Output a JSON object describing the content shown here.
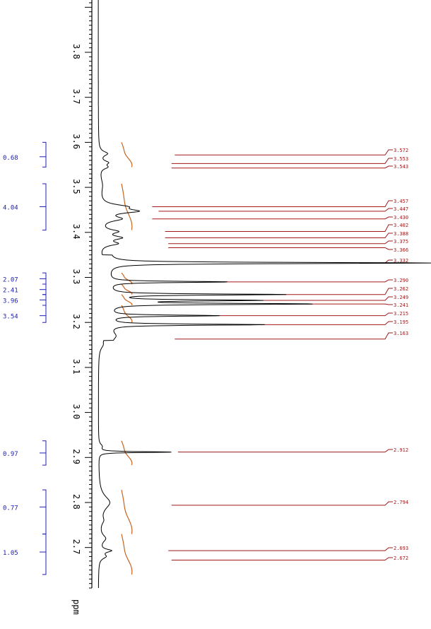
{
  "chart_data": {
    "type": "line",
    "title": "",
    "xlabel": "ppm",
    "xlim": [
      3.92,
      2.61
    ],
    "ticks": [
      "3.8",
      "3.7",
      "3.6",
      "3.5",
      "3.4",
      "3.3",
      "3.2",
      "3.1",
      "3.0",
      "2.9",
      "2.8",
      "2.7"
    ],
    "tick_values": [
      3.8,
      3.7,
      3.6,
      3.5,
      3.4,
      3.3,
      3.2,
      3.1,
      3.0,
      2.9,
      2.8,
      2.7
    ],
    "integrals": [
      {
        "label": "0.68",
        "from": 3.6,
        "to": 3.545,
        "mark": 3.568
      },
      {
        "label": "4.04",
        "from": 3.508,
        "to": 3.405,
        "mark": 3.457
      },
      {
        "label": "2.07",
        "from": 3.31,
        "to": 3.285,
        "mark": 3.297
      },
      {
        "label": "2.41",
        "from": 3.285,
        "to": 3.262,
        "mark": 3.273
      },
      {
        "label": "3.96",
        "from": 3.262,
        "to": 3.238,
        "mark": 3.25
      },
      {
        "label": "3.54",
        "from": 3.238,
        "to": 3.2,
        "mark": 3.215
      },
      {
        "label": "0.97",
        "from": 2.937,
        "to": 2.883,
        "mark": 2.91
      },
      {
        "label": "0.77",
        "from": 2.828,
        "to": 2.73,
        "mark": 2.79
      },
      {
        "label": "1.05",
        "from": 2.73,
        "to": 2.64,
        "mark": 2.69
      }
    ],
    "peaks": [
      {
        "label": "3.572",
        "ppm": 3.572,
        "height": 0.22
      },
      {
        "label": "3.553",
        "ppm": 3.553,
        "height": 0.21
      },
      {
        "label": "3.543",
        "ppm": 3.543,
        "height": 0.21
      },
      {
        "label": "3.457",
        "ppm": 3.457,
        "height": 0.15
      },
      {
        "label": "3.447",
        "ppm": 3.447,
        "height": 0.17
      },
      {
        "label": "3.430",
        "ppm": 3.43,
        "height": 0.15
      },
      {
        "label": "3.402",
        "ppm": 3.402,
        "height": 0.19
      },
      {
        "label": "3.388",
        "ppm": 3.388,
        "height": 0.19
      },
      {
        "label": "3.375",
        "ppm": 3.375,
        "height": 0.2
      },
      {
        "label": "3.366",
        "ppm": 3.366,
        "height": 0.2
      },
      {
        "label": "3.332",
        "ppm": 3.332,
        "height": 1.0
      },
      {
        "label": "3.290",
        "ppm": 3.29,
        "height": 0.37
      },
      {
        "label": "3.262",
        "ppm": 3.262,
        "height": 0.54
      },
      {
        "label": "3.249",
        "ppm": 3.249,
        "height": 0.45
      },
      {
        "label": "3.241",
        "ppm": 3.241,
        "height": 0.62
      },
      {
        "label": "3.215",
        "ppm": 3.215,
        "height": 0.34
      },
      {
        "label": "3.195",
        "ppm": 3.195,
        "height": 0.48
      },
      {
        "label": "3.163",
        "ppm": 3.163,
        "height": 0.22
      },
      {
        "label": "2.912",
        "ppm": 2.912,
        "height": 0.23
      },
      {
        "label": "2.794",
        "ppm": 2.794,
        "height": 0.21
      },
      {
        "label": "2.693",
        "ppm": 2.693,
        "height": 0.2
      },
      {
        "label": "2.672",
        "ppm": 2.672,
        "height": 0.21
      }
    ],
    "colors": {
      "spectrum": "#000000",
      "integral_curve": "#c8641e",
      "integral_bracket": "#2020b0",
      "peak_label": "#a01818"
    }
  }
}
